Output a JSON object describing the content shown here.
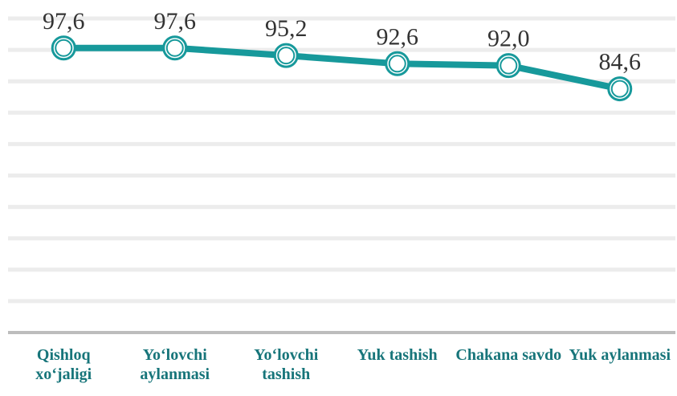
{
  "chart_data": {
    "type": "line",
    "categories": [
      "Qishloq xo‘jaligi",
      "Yo‘lovchi aylanmasi",
      "Yo‘lovchi tashish",
      "Yuk tashish",
      "Chakana savdo",
      "Yuk aylanmasi"
    ],
    "values": [
      97.6,
      97.6,
      95.2,
      92.6,
      92.0,
      84.6
    ],
    "value_labels": [
      "97,6",
      "97,6",
      "95,2",
      "92,6",
      "92,0",
      "84,6"
    ],
    "color": "#17999b",
    "ylim": [
      7,
      107
    ],
    "yticks": [
      7,
      17,
      27,
      37,
      47,
      57,
      67,
      77,
      87,
      97,
      107
    ],
    "grid": true
  }
}
